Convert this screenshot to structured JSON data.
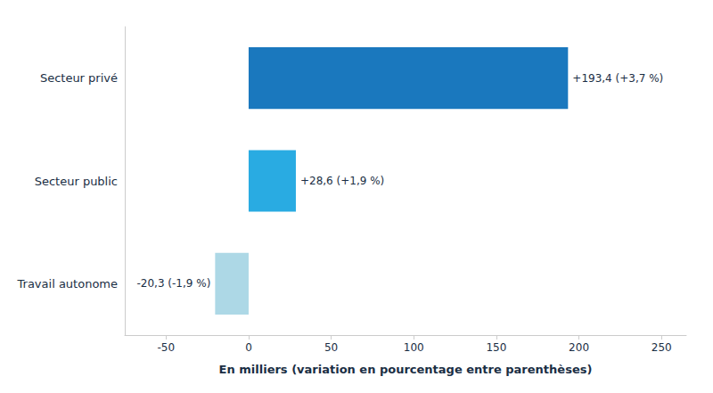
{
  "chart_data": {
    "type": "bar",
    "orientation": "horizontal",
    "categories": [
      "Travail autonome",
      "Secteur public",
      "Secteur privé"
    ],
    "values": [
      -20.3,
      28.6,
      193.4
    ],
    "value_labels": [
      "-20,3 (-1,9 %)",
      "+28,6 (+1,9 %)",
      "+193,4 (+3,7 %)"
    ],
    "data_labels": true,
    "colors": [
      "#add8e6",
      "#29abe2",
      "#1a78be"
    ],
    "xlabel": "En milliers (variation en pourcentage entre parenthèses)",
    "xlim": [
      -75,
      265
    ],
    "xticks": [
      -50,
      0,
      50,
      100,
      150,
      200,
      250
    ],
    "grid": false
  }
}
